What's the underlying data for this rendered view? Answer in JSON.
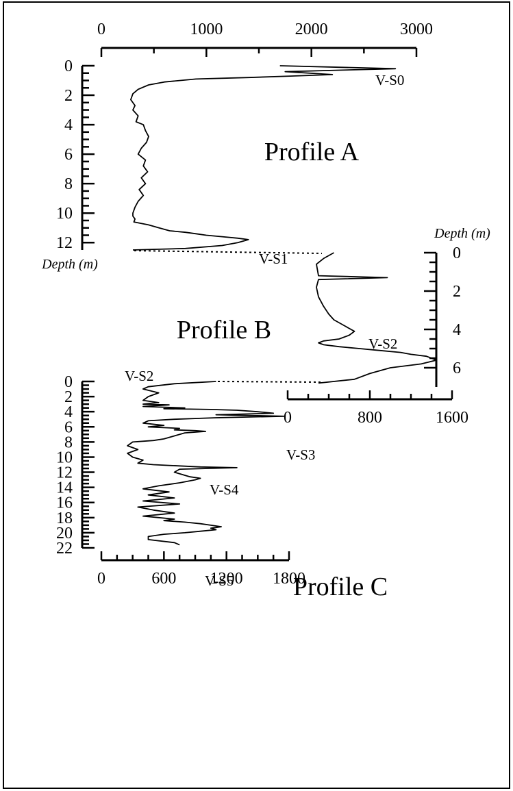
{
  "chart_data": [
    {
      "name": "Profile A",
      "label": "Profile A",
      "type": "line",
      "x_ticks": [
        0,
        1000,
        2000,
        3000
      ],
      "xlim": [
        0,
        3000
      ],
      "y_ticks": [
        0,
        2,
        4,
        6,
        8,
        10,
        12
      ],
      "ylim": [
        0,
        12.5
      ],
      "annotations": [
        {
          "text": "V-S0",
          "depth": 1.0
        },
        {
          "text": "V-S1",
          "depth": 11.8
        }
      ],
      "series": [
        {
          "x": [
            1700,
            2800,
            1750,
            2200,
            1800,
            1400,
            900,
            600,
            450,
            350,
            300,
            280,
            320,
            300,
            350,
            330,
            400,
            420,
            450,
            430,
            380,
            350,
            420,
            400,
            440,
            380,
            420,
            360,
            400,
            350,
            320,
            300,
            300,
            320,
            310,
            450,
            550,
            600,
            650,
            800,
            900,
            1000,
            1150,
            1300,
            1400,
            1300,
            1150,
            800,
            300
          ],
          "y": [
            0.0,
            0.2,
            0.4,
            0.6,
            0.7,
            0.8,
            0.9,
            1.1,
            1.3,
            1.6,
            1.9,
            2.3,
            2.7,
            3.0,
            3.4,
            3.8,
            4.0,
            4.4,
            4.8,
            5.2,
            5.6,
            6.0,
            6.4,
            6.8,
            7.2,
            7.6,
            8.0,
            8.4,
            8.8,
            9.2,
            9.6,
            10.0,
            10.2,
            10.4,
            10.6,
            10.8,
            11.0,
            11.1,
            11.2,
            11.3,
            11.4,
            11.5,
            11.6,
            11.7,
            11.8,
            12.0,
            12.2,
            12.4,
            12.5
          ]
        }
      ]
    },
    {
      "name": "Profile B",
      "label": "Profile B",
      "type": "line",
      "x_ticks": [
        0,
        800,
        1600
      ],
      "xlim": [
        0,
        1600
      ],
      "y_ticks": [
        0,
        2,
        4,
        6
      ],
      "ylim": [
        0,
        7
      ],
      "y_axis_title": "Depth (m)",
      "annotations": [
        {
          "text": "V-S2",
          "depth": 5.0
        }
      ],
      "series": [
        {
          "x": [
            450,
            350,
            280,
            300,
            970,
            300,
            280,
            300,
            350,
            400,
            450,
            550,
            650,
            600,
            500,
            350,
            300,
            350,
            500,
            700,
            900,
            1100,
            1200,
            1350,
            1450,
            1300,
            1000,
            800,
            650,
            300
          ],
          "y": [
            0.0,
            0.3,
            0.6,
            1.2,
            1.3,
            1.4,
            1.8,
            2.3,
            2.8,
            3.2,
            3.5,
            3.8,
            4.1,
            4.3,
            4.5,
            4.6,
            4.7,
            4.8,
            4.9,
            5.0,
            5.1,
            5.2,
            5.3,
            5.4,
            5.6,
            5.8,
            6.0,
            6.3,
            6.6,
            6.8
          ]
        }
      ]
    },
    {
      "name": "Profile C",
      "label": "Profile C",
      "type": "line",
      "x_ticks": [
        0,
        600,
        1200,
        1800
      ],
      "xlim": [
        0,
        1800
      ],
      "y_ticks": [
        0,
        2,
        4,
        6,
        8,
        10,
        12,
        14,
        16,
        18,
        20,
        22
      ],
      "ylim": [
        0,
        22
      ],
      "y_axis_title": "Depth (m)",
      "annotations": [
        {
          "text": "V-S2",
          "depth": 0.0
        },
        {
          "text": "V-S3",
          "depth": 4.5
        },
        {
          "text": "V-S4",
          "depth": 6.5
        },
        {
          "text": "V-S5",
          "depth": 12.5
        }
      ],
      "series": [
        {
          "x": [
            1100,
            700,
            450,
            400,
            550,
            450,
            400,
            550,
            400,
            650,
            400,
            800,
            600,
            1050,
            1300,
            1500,
            1650,
            1100,
            1750,
            1100,
            700,
            450,
            400,
            600,
            450,
            750,
            700,
            900,
            1000,
            800,
            700,
            600,
            500,
            300,
            250,
            350,
            250,
            300,
            400,
            350,
            500,
            650,
            800,
            950,
            1300,
            750,
            700,
            800,
            850,
            950,
            900,
            750,
            550,
            400,
            650,
            450,
            700,
            400,
            750,
            350,
            500,
            700,
            400,
            550,
            700,
            600,
            800,
            950,
            1050,
            1150,
            1050,
            1100,
            950,
            800,
            600,
            450,
            450,
            700,
            750
          ],
          "y": [
            0.0,
            0.3,
            0.7,
            1.0,
            1.5,
            2.0,
            2.5,
            2.8,
            3.0,
            3.1,
            3.3,
            3.5,
            3.6,
            3.7,
            3.8,
            4.0,
            4.2,
            4.4,
            4.6,
            4.8,
            5.0,
            5.2,
            5.5,
            5.8,
            6.0,
            6.2,
            6.4,
            6.5,
            6.6,
            6.8,
            7.2,
            7.6,
            7.8,
            8.0,
            8.5,
            9.0,
            9.5,
            10.0,
            10.4,
            10.8,
            11.0,
            11.1,
            11.2,
            11.3,
            11.4,
            11.6,
            12.0,
            12.4,
            12.6,
            12.8,
            13.0,
            13.4,
            13.8,
            14.2,
            14.6,
            15.0,
            15.4,
            15.8,
            16.2,
            16.6,
            17.0,
            17.4,
            17.8,
            18.0,
            18.2,
            18.4,
            18.6,
            18.8,
            19.0,
            19.2,
            19.4,
            19.6,
            19.8,
            20.0,
            20.2,
            20.5,
            20.9,
            21.3,
            21.6
          ]
        }
      ]
    }
  ]
}
